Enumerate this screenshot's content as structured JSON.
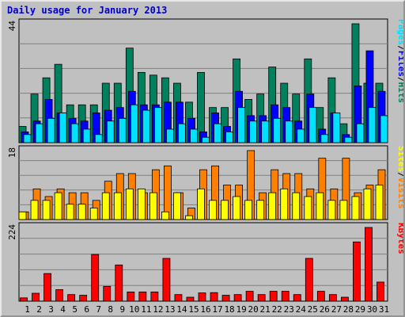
{
  "title": "Daily usage for January 2013",
  "colors": {
    "hits": "#00805c",
    "files": "#0000ff",
    "pages": "#00e0ff",
    "visits": "#ff8000",
    "sites": "#ffff00",
    "kbytes": "#ff0000",
    "weekend_day_label": "#008040",
    "weekday_label": "#000000"
  },
  "chart_data": [
    {
      "type": "bar",
      "name_panel": "hits-files-pages",
      "categories": [
        "1",
        "2",
        "3",
        "4",
        "5",
        "6",
        "7",
        "8",
        "9",
        "10",
        "11",
        "12",
        "13",
        "14",
        "15",
        "16",
        "17",
        "18",
        "19",
        "20",
        "21",
        "22",
        "23",
        "24",
        "25",
        "26",
        "27",
        "28",
        "29",
        "30",
        "31"
      ],
      "y_tick_label": "44",
      "ylim": [
        0,
        44
      ],
      "legend": [
        "Pages",
        "Files",
        "Hits"
      ],
      "series": [
        {
          "name": "Hits",
          "values": [
            6,
            18,
            24,
            29,
            14,
            14,
            14,
            22,
            22,
            35,
            26,
            25,
            24,
            22,
            15,
            26,
            13,
            13,
            31,
            16,
            18,
            28,
            22,
            18,
            31,
            13,
            24,
            7,
            44,
            22,
            22
          ]
        },
        {
          "name": "Files",
          "values": [
            4,
            8,
            16,
            11,
            9,
            8,
            11,
            12,
            13,
            19,
            14,
            14,
            15,
            15,
            9,
            4,
            11,
            6,
            19,
            10,
            10,
            14,
            13,
            8,
            18,
            5,
            11,
            3,
            21,
            34,
            19
          ]
        },
        {
          "name": "Pages",
          "values": [
            3,
            7,
            9,
            11,
            7,
            5,
            3,
            8,
            9,
            14,
            12,
            13,
            5,
            7,
            5,
            2,
            7,
            4,
            13,
            8,
            8,
            9,
            8,
            5,
            13,
            3,
            11,
            2,
            7,
            13,
            10
          ]
        }
      ]
    },
    {
      "type": "bar",
      "name_panel": "visits-sites",
      "categories": [
        "1",
        "2",
        "3",
        "4",
        "5",
        "6",
        "7",
        "8",
        "9",
        "10",
        "11",
        "12",
        "13",
        "14",
        "15",
        "16",
        "17",
        "18",
        "19",
        "20",
        "21",
        "22",
        "23",
        "24",
        "25",
        "26",
        "27",
        "28",
        "29",
        "30",
        "31"
      ],
      "y_tick_label": "18",
      "ylim": [
        0,
        18
      ],
      "legend": [
        "Sites",
        "Visits"
      ],
      "series": [
        {
          "name": "Visits",
          "values": [
            2,
            8,
            6,
            8,
            7,
            7,
            5,
            10,
            12,
            12,
            7,
            13,
            14,
            7,
            3,
            13,
            14,
            9,
            9,
            18,
            7,
            13,
            12,
            12,
            8,
            16,
            8,
            16,
            7,
            9,
            13
          ]
        },
        {
          "name": "Sites",
          "values": [
            2,
            5,
            5,
            7,
            4,
            4,
            3,
            7,
            7,
            8,
            8,
            7,
            2,
            7,
            1,
            8,
            5,
            5,
            6,
            5,
            5,
            7,
            8,
            7,
            6,
            7,
            5,
            5,
            6,
            8,
            9
          ]
        }
      ]
    },
    {
      "type": "bar",
      "name_panel": "kbytes",
      "categories": [
        "1",
        "2",
        "3",
        "4",
        "5",
        "6",
        "7",
        "8",
        "9",
        "10",
        "11",
        "12",
        "13",
        "14",
        "15",
        "16",
        "17",
        "18",
        "19",
        "20",
        "21",
        "22",
        "23",
        "24",
        "25",
        "26",
        "27",
        "28",
        "29",
        "30",
        "31"
      ],
      "y_tick_label": "224",
      "ylim": [
        0,
        224
      ],
      "legend": [
        "KBytes"
      ],
      "series": [
        {
          "name": "KBytes",
          "values": [
            10,
            24,
            84,
            35,
            20,
            18,
            142,
            45,
            110,
            28,
            28,
            28,
            130,
            20,
            12,
            25,
            26,
            18,
            20,
            30,
            20,
            30,
            30,
            20,
            130,
            30,
            20,
            12,
            180,
            224,
            58
          ]
        }
      ]
    }
  ]
}
